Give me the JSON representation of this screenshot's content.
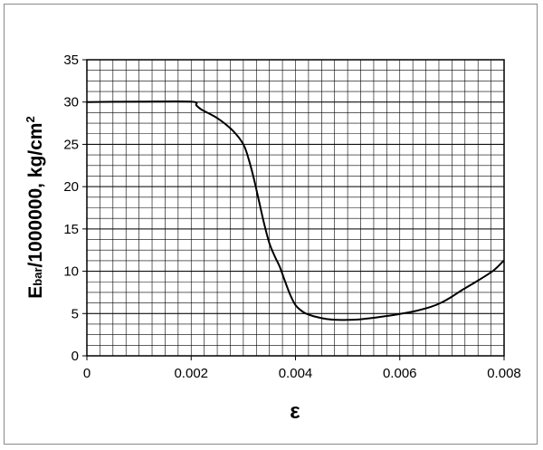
{
  "chart_data": {
    "type": "line",
    "title": "",
    "xlabel": "ε",
    "ylabel": {
      "main": "E",
      "subscript": "bar",
      "rest": "/1000000, kg/cm",
      "superscript": "2"
    },
    "xlim": [
      0,
      0.008
    ],
    "ylim": [
      0,
      35
    ],
    "x_ticks": [
      "0",
      "0.002",
      "0.004",
      "0.006",
      "0.008"
    ],
    "y_ticks": [
      "0",
      "5",
      "10",
      "15",
      "20",
      "25",
      "30",
      "35"
    ],
    "grid": true,
    "legend": "none",
    "line_color": "#000000",
    "series": [
      {
        "x": [
          0,
          0.001,
          0.002,
          0.0021,
          0.0022,
          0.0025,
          0.0028,
          0.003,
          0.0031,
          0.0032,
          0.0033,
          0.0034,
          0.0035,
          0.0036,
          0.0037,
          0.0038,
          0.0039,
          0.004,
          0.0041,
          0.0042,
          0.0044,
          0.0046,
          0.0048,
          0.005,
          0.0052,
          0.0055,
          0.0058,
          0.006,
          0.0063,
          0.0066,
          0.0068,
          0.007,
          0.0072,
          0.0075,
          0.0078,
          0.008
        ],
        "values": [
          30,
          30.05,
          30.05,
          29.6,
          29.1,
          28.1,
          26.6,
          25.0,
          23.3,
          21.0,
          18.3,
          15.6,
          13.3,
          11.8,
          10.5,
          8.8,
          7.2,
          6.0,
          5.4,
          5.0,
          4.6,
          4.35,
          4.25,
          4.25,
          4.3,
          4.5,
          4.75,
          4.95,
          5.3,
          5.8,
          6.3,
          7.0,
          7.8,
          8.9,
          10.1,
          11.3
        ]
      }
    ]
  }
}
